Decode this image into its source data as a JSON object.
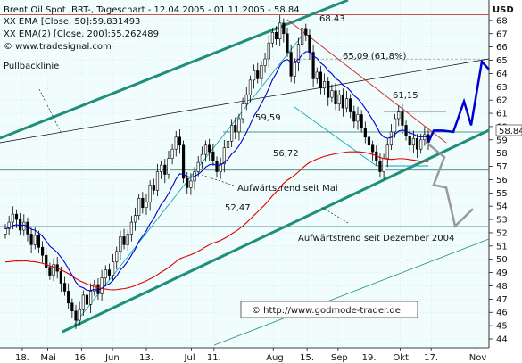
{
  "chart_data": {
    "type": "candlestick",
    "title": "Brent Oil Spot ,BRT-, Tageschart - 12.04.2005 - 01.11.2005 - 58.84",
    "legend": [
      {
        "text": "XX EMA [Close, 50]:59.831493",
        "color": "#0000cc"
      },
      {
        "text": "XX EMA(2) [Close, 200]:55.262489",
        "color": "#dd0000"
      },
      {
        "text": "© www.tradesignal.com",
        "color": "#000000"
      }
    ],
    "ylabel": "USD",
    "ylim": [
      44,
      69
    ],
    "y_ticks": [
      44,
      45,
      46,
      47,
      48,
      49,
      50,
      51,
      52,
      53,
      54,
      55,
      56,
      57,
      58,
      59,
      60,
      61,
      62,
      63,
      64,
      65,
      66,
      67,
      68
    ],
    "x_ticks": [
      {
        "label": "18.",
        "t": 0.06
      },
      {
        "label": "Mai",
        "t": 0.15
      },
      {
        "label": "16.",
        "t": 0.27
      },
      {
        "label": "Jun",
        "t": 0.38
      },
      {
        "label": "13.",
        "t": 0.5
      },
      {
        "label": "Jul",
        "t": 0.66
      },
      {
        "label": "11.",
        "t": 0.74
      },
      {
        "label": "Aug",
        "t": 0.95
      },
      {
        "label": "15.",
        "t": 1.07
      },
      {
        "label": "Sep",
        "t": 1.18
      },
      {
        "label": "19.",
        "t": 1.29
      },
      {
        "label": "Okt",
        "t": 1.4
      },
      {
        "label": "17.",
        "t": 1.51
      },
      {
        "label": "Nov",
        "t": 1.67
      }
    ],
    "last_price": 58.84,
    "levels": [
      {
        "label": "68.43",
        "value": 68.43
      },
      {
        "label": "65,09 (61,8%)",
        "value": 65.09
      },
      {
        "label": "61,15",
        "value": 61.15
      },
      {
        "label": "59,59",
        "value": 59.59
      },
      {
        "label": "56,72",
        "value": 56.72
      },
      {
        "label": "52,47",
        "value": 52.47
      }
    ],
    "annotations": [
      "Pullbacklinie",
      "Aufwärtstrend seit Mai",
      "Aufwärtstrend seit Dezember 2004",
      "© http://www.godmode-trader.de"
    ],
    "closes": [
      52.3,
      52.8,
      53.4,
      53.0,
      52.2,
      52.8,
      51.9,
      51.1,
      51.8,
      50.9,
      50.3,
      49.4,
      48.8,
      49.6,
      49.1,
      48.2,
      47.6,
      46.7,
      46.1,
      45.4,
      46.2,
      47.3,
      46.6,
      47.6,
      48.1,
      47.4,
      48.6,
      49.2,
      48.8,
      49.8,
      50.6,
      51.7,
      51.1,
      51.9,
      52.8,
      53.3,
      54.6,
      53.9,
      54.3,
      55.6,
      55.2,
      56.6,
      57.1,
      56.4,
      57.6,
      58.3,
      59.2,
      58.6,
      56.1,
      55.4,
      55.9,
      56.6,
      57.3,
      57.9,
      58.6,
      58.1,
      57.4,
      56.6,
      57.2,
      58.4,
      58.9,
      60.1,
      59.6,
      60.6,
      61.7,
      62.4,
      63.5,
      64.2,
      63.6,
      64.6,
      65.1,
      66.3,
      67.1,
      66.6,
      67.8,
      67.0,
      65.6,
      63.8,
      64.8,
      66.2,
      67.4,
      66.9,
      65.6,
      63.6,
      64.1,
      62.9,
      63.4,
      62.2,
      62.7,
      61.7,
      62.4,
      61.4,
      62.1,
      61.1,
      60.4,
      60.9,
      59.9,
      59.2,
      58.6,
      58.1,
      57.4,
      56.6,
      57.6,
      58.6,
      59.6,
      60.6,
      61.1,
      60.1,
      59.3,
      58.6,
      59.1,
      58.3,
      59.0,
      59.4,
      58.8
    ]
  }
}
